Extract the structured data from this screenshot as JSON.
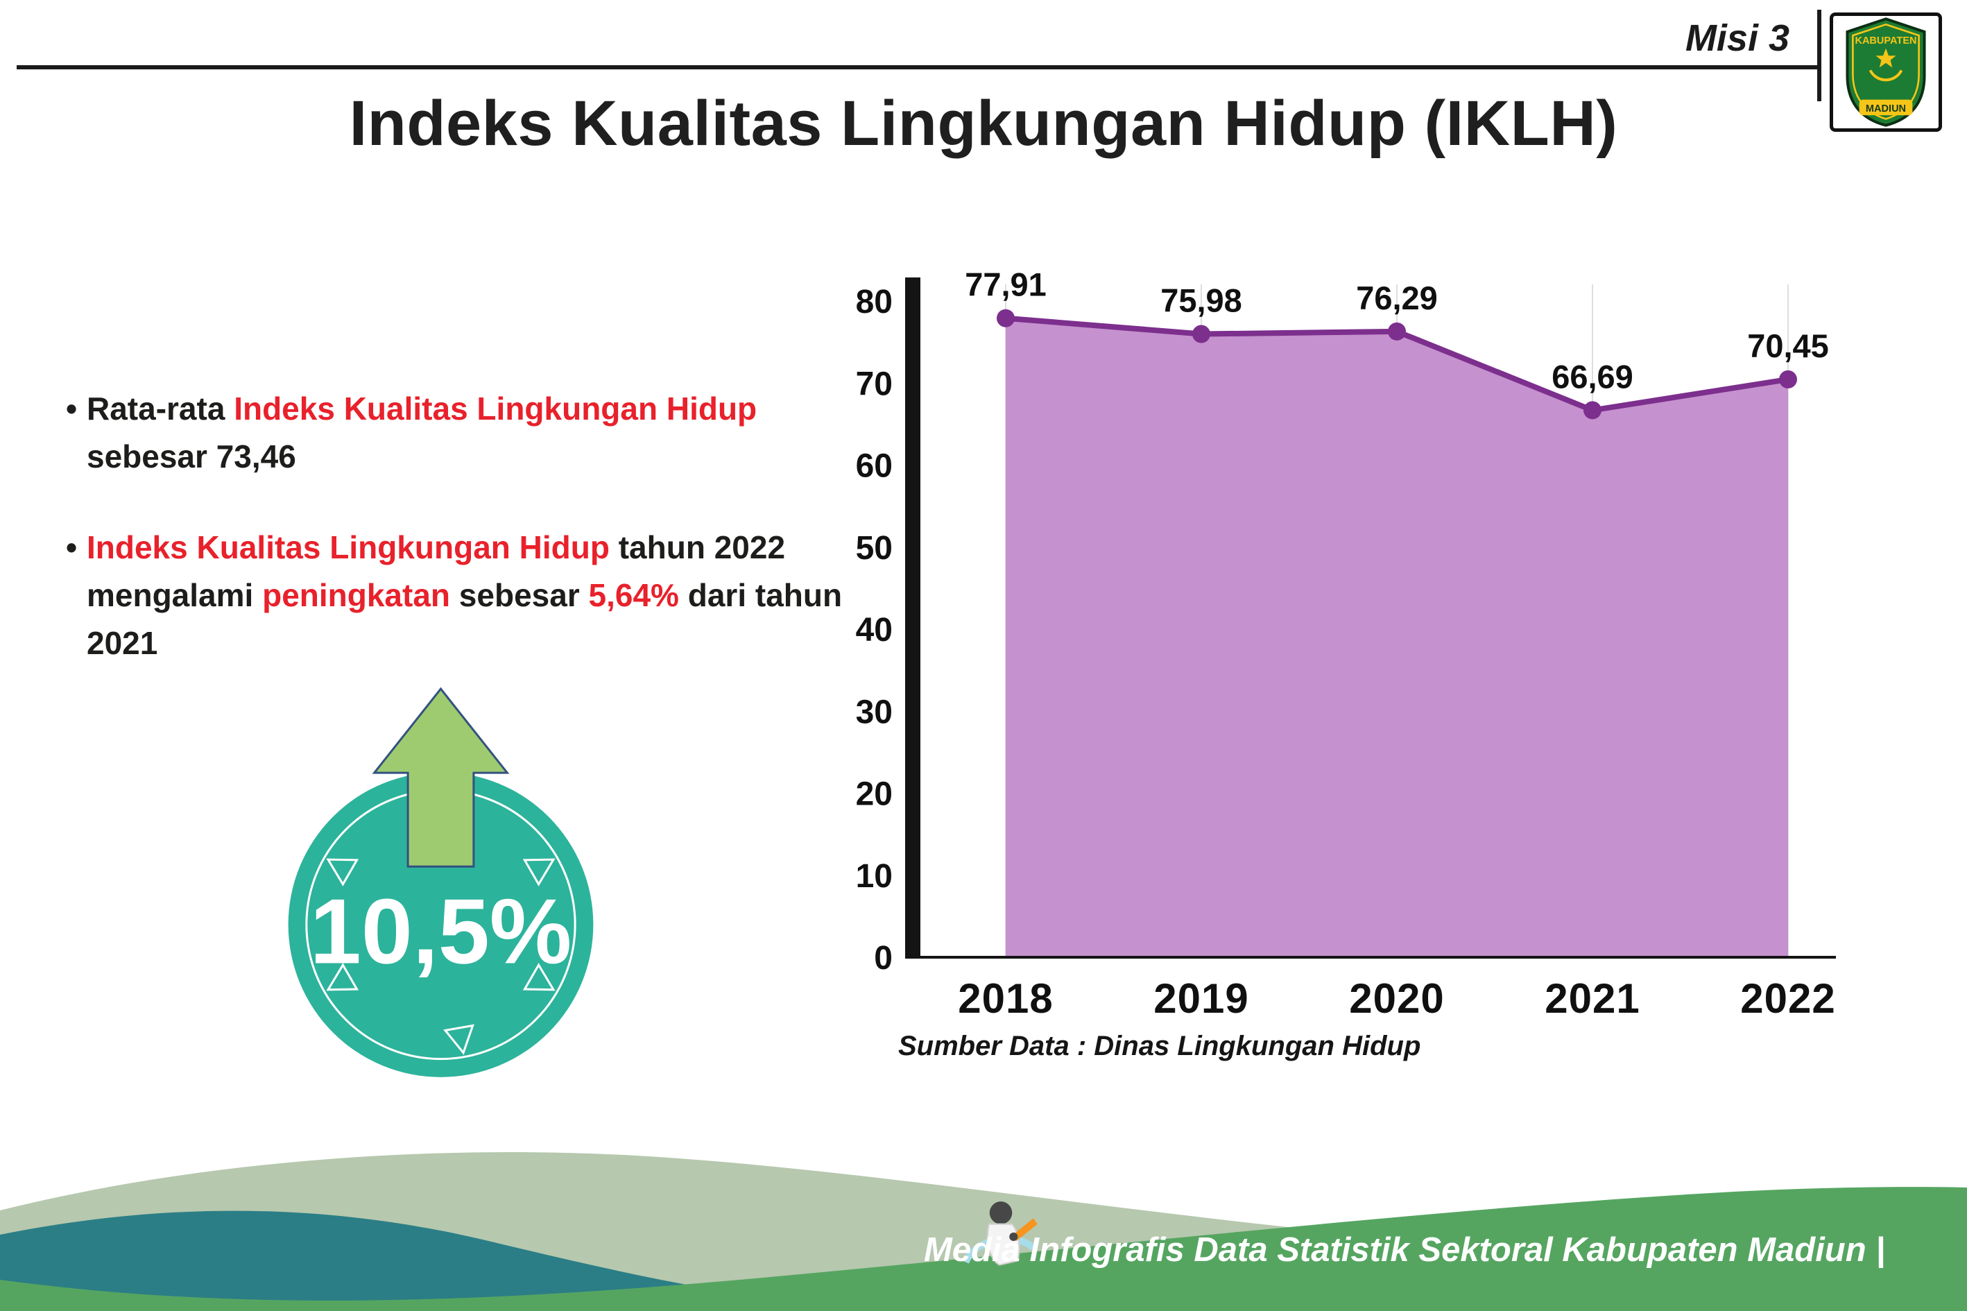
{
  "header": {
    "misi_label": "Misi 3",
    "title": "Indeks Kualitas Lingkungan Hidup (IKLH)",
    "logo_line1": "KABUPATEN",
    "logo_line2": "MADIUN"
  },
  "bullets": {
    "b1_pre": "Rata-rata ",
    "b1_red": "Indeks Kualitas Lingkungan Hidup",
    "b1_post": " sebesar 73,46",
    "b2_red1": "Indeks Kualitas Lingkungan Hidup",
    "b2_mid1": " tahun 2022 mengalami ",
    "b2_red2": "peningkatan",
    "b2_mid2": " sebesar ",
    "b2_red3": "5,64%",
    "b2_post": " dari tahun 2021"
  },
  "badge": {
    "value": "10,5%"
  },
  "chart_data": {
    "type": "area",
    "categories": [
      "2018",
      "2019",
      "2020",
      "2021",
      "2022"
    ],
    "values": [
      77.91,
      75.98,
      76.29,
      66.69,
      70.45
    ],
    "point_labels": [
      "77,91",
      "75,98",
      "76,29",
      "66,69",
      "70,45"
    ],
    "ylim": [
      0,
      80
    ],
    "yticks": [
      0,
      10,
      20,
      30,
      40,
      50,
      60,
      70,
      80
    ],
    "grid": "vertical-light",
    "legend": "none",
    "line_color": "#7c2f8d",
    "fill_color": "#c591ce",
    "source": "Sumber Data : Dinas Lingkungan Hidup"
  },
  "footer": {
    "credit": "Media Infografis Data Statistik Sektoral Kabupaten Madiun |"
  },
  "colors": {
    "accent_red": "#e8212b",
    "badge_teal": "#2cb39b",
    "arrow_green": "#9fcb70",
    "arrow_outline": "#33527f",
    "wave_sage": "#b6c8ae",
    "wave_teal": "#2b7e86",
    "wave_green": "#55a561"
  }
}
